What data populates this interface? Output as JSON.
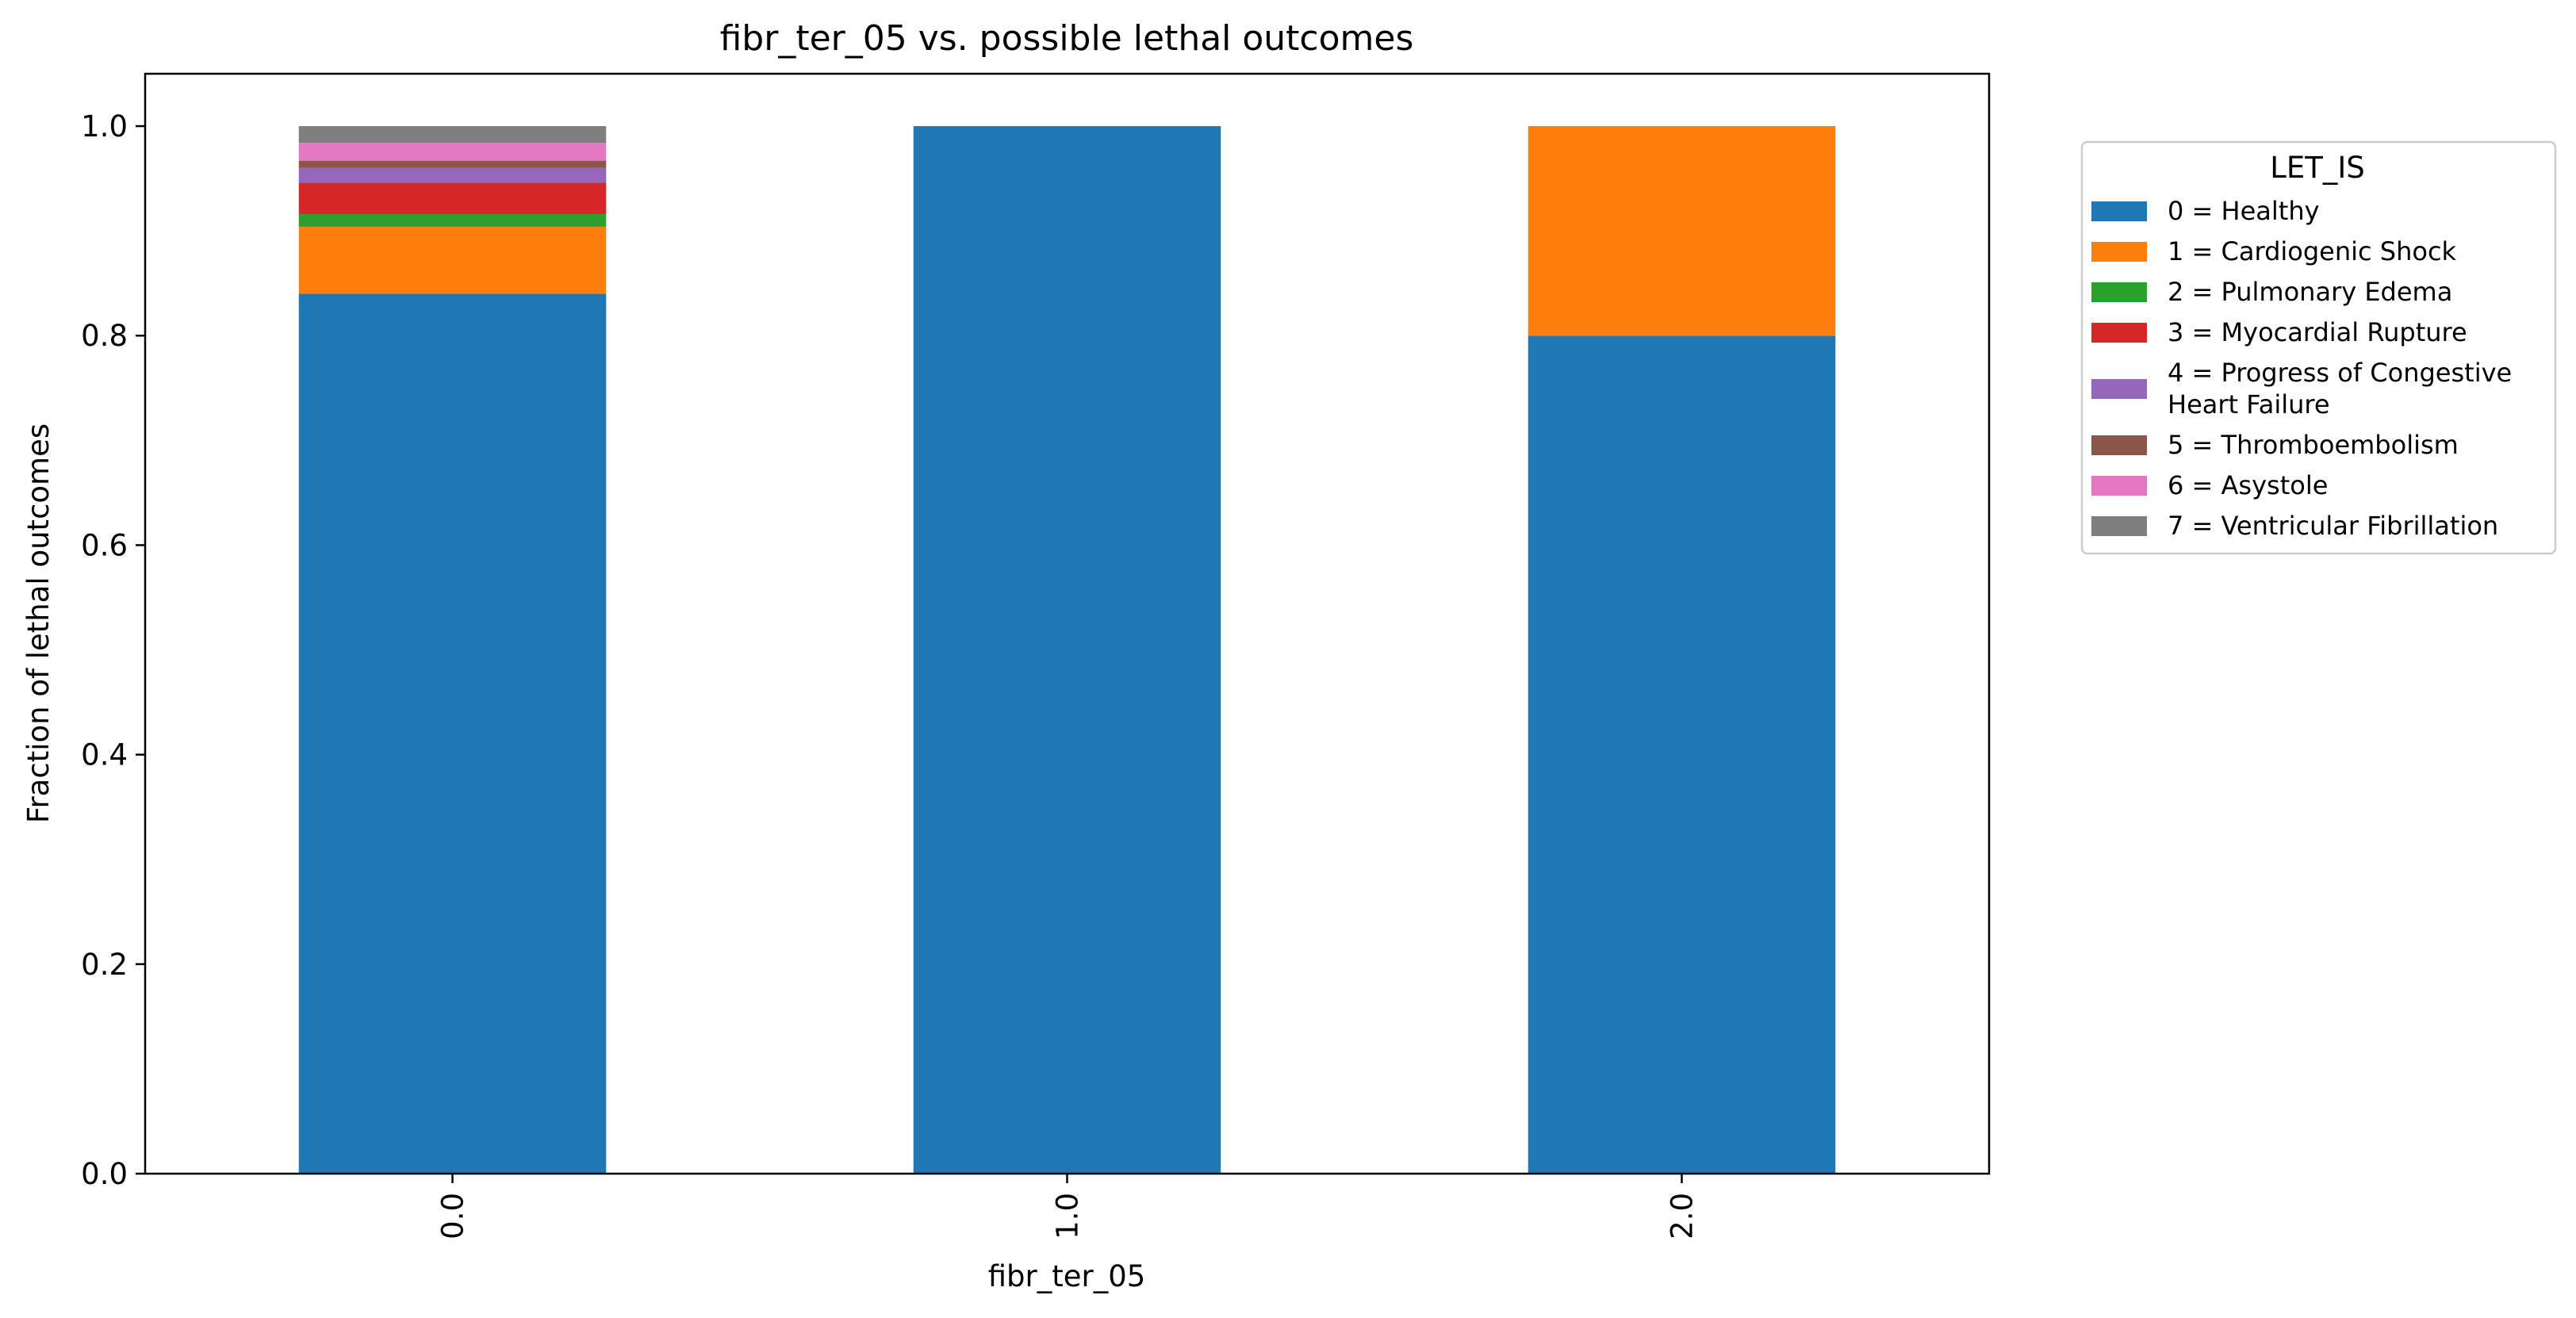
{
  "chart_data": {
    "type": "bar",
    "stacked": true,
    "title": "fibr_ter_05 vs. possible lethal outcomes",
    "xlabel": "fibr_ter_05",
    "ylabel": "Fraction of lethal outcomes",
    "categories": [
      "0.0",
      "1.0",
      "2.0"
    ],
    "ylim": [
      0,
      1.05
    ],
    "yticks": [
      "0.0",
      "0.2",
      "0.4",
      "0.6",
      "0.8",
      "1.0"
    ],
    "grid": false,
    "legend": {
      "title": "LET_IS",
      "placement": "right, outside plot area"
    },
    "series": [
      {
        "name": "0 = Healthy",
        "color": "#1f77b4",
        "values": [
          0.84,
          1.0,
          0.8
        ]
      },
      {
        "name": "1 = Cardiogenic Shock",
        "color": "#ff7f0e",
        "values": [
          0.064,
          0.0,
          0.2
        ]
      },
      {
        "name": "2 = Pulmonary Edema",
        "color": "#2ca02c",
        "values": [
          0.012,
          0.0,
          0.0
        ]
      },
      {
        "name": "3 = Myocardial Rupture",
        "color": "#d62728",
        "values": [
          0.03,
          0.0,
          0.0
        ]
      },
      {
        "name": "4 = Progress of Congestive Heart Failure",
        "color": "#9467bd",
        "values": [
          0.014,
          0.0,
          0.0
        ]
      },
      {
        "name": "5 = Thromboembolism",
        "color": "#8c564b",
        "values": [
          0.007,
          0.0,
          0.0
        ]
      },
      {
        "name": "6 = Asystole",
        "color": "#e377c2",
        "values": [
          0.017,
          0.0,
          0.0
        ]
      },
      {
        "name": "7 = Ventricular Fibrillation",
        "color": "#7f7f7f",
        "values": [
          0.016,
          0.0,
          0.0
        ]
      }
    ]
  }
}
